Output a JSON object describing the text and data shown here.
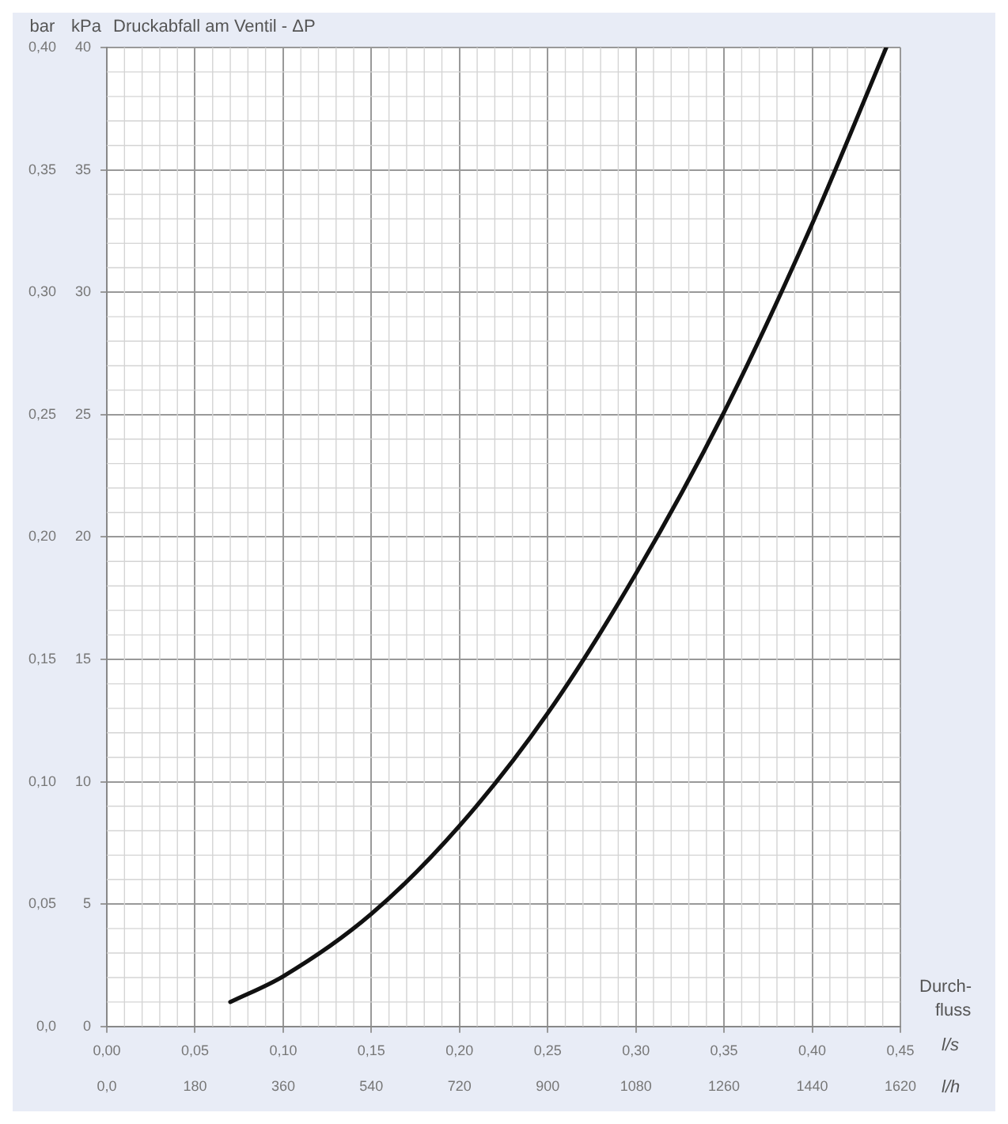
{
  "chart_data": {
    "type": "line",
    "title": "Druckabfall am Ventil - ΔP",
    "ylabel": "kPa",
    "y2label": "bar",
    "xlabel": "l/s",
    "x2label": "l/h",
    "annotations": [
      "Durch- fluss"
    ],
    "series": [
      {
        "color": "#111111",
        "x": [
          0.07,
          0.1,
          0.15,
          0.2,
          0.25,
          0.3,
          0.35,
          0.4,
          0.442
        ],
        "values": [
          1.0,
          2.05,
          4.6,
          8.2,
          12.8,
          18.5,
          25.1,
          32.8,
          40
        ]
      }
    ],
    "xlim": [
      0,
      0.45
    ],
    "xticks": [
      {
        "value": 0,
        "label": "0,00"
      },
      {
        "value": 0.05,
        "label": "0,05"
      },
      {
        "value": 0.1,
        "label": "0,10"
      },
      {
        "value": 0.15,
        "label": "0,15"
      },
      {
        "value": 0.2,
        "label": "0,20"
      },
      {
        "value": 0.25,
        "label": "0,25"
      },
      {
        "value": 0.3,
        "label": "0,30"
      },
      {
        "value": 0.35,
        "label": "0,35"
      },
      {
        "value": 0.4,
        "label": "0,40"
      },
      {
        "value": 0.45,
        "label": "0,45"
      }
    ],
    "x2lim": [
      0,
      1620
    ],
    "x2ticks": [
      {
        "value": 0,
        "label": "0,0"
      },
      180,
      360,
      540,
      720,
      900,
      1080,
      1260,
      1440,
      1620
    ],
    "ylim": [
      0,
      40
    ],
    "yticks": [
      0,
      5,
      10,
      15,
      20,
      25,
      30,
      35,
      40
    ],
    "y2lim": [
      0,
      0.4
    ],
    "y2ticks": [
      {
        "value": 0,
        "label": "0,0"
      },
      {
        "value": 0.05,
        "label": "0,05"
      },
      {
        "value": 0.1,
        "label": "0,10"
      },
      {
        "value": 0.15,
        "label": "0,15"
      },
      {
        "value": 0.2,
        "label": "0,20"
      },
      {
        "value": 0.25,
        "label": "0,25"
      },
      {
        "value": 0.3,
        "label": "0,30"
      },
      {
        "value": 0.35,
        "label": "0,35"
      },
      {
        "value": 0.4,
        "label": "0,40"
      }
    ],
    "grid": true,
    "marker": "none",
    "line_style": "solid"
  }
}
